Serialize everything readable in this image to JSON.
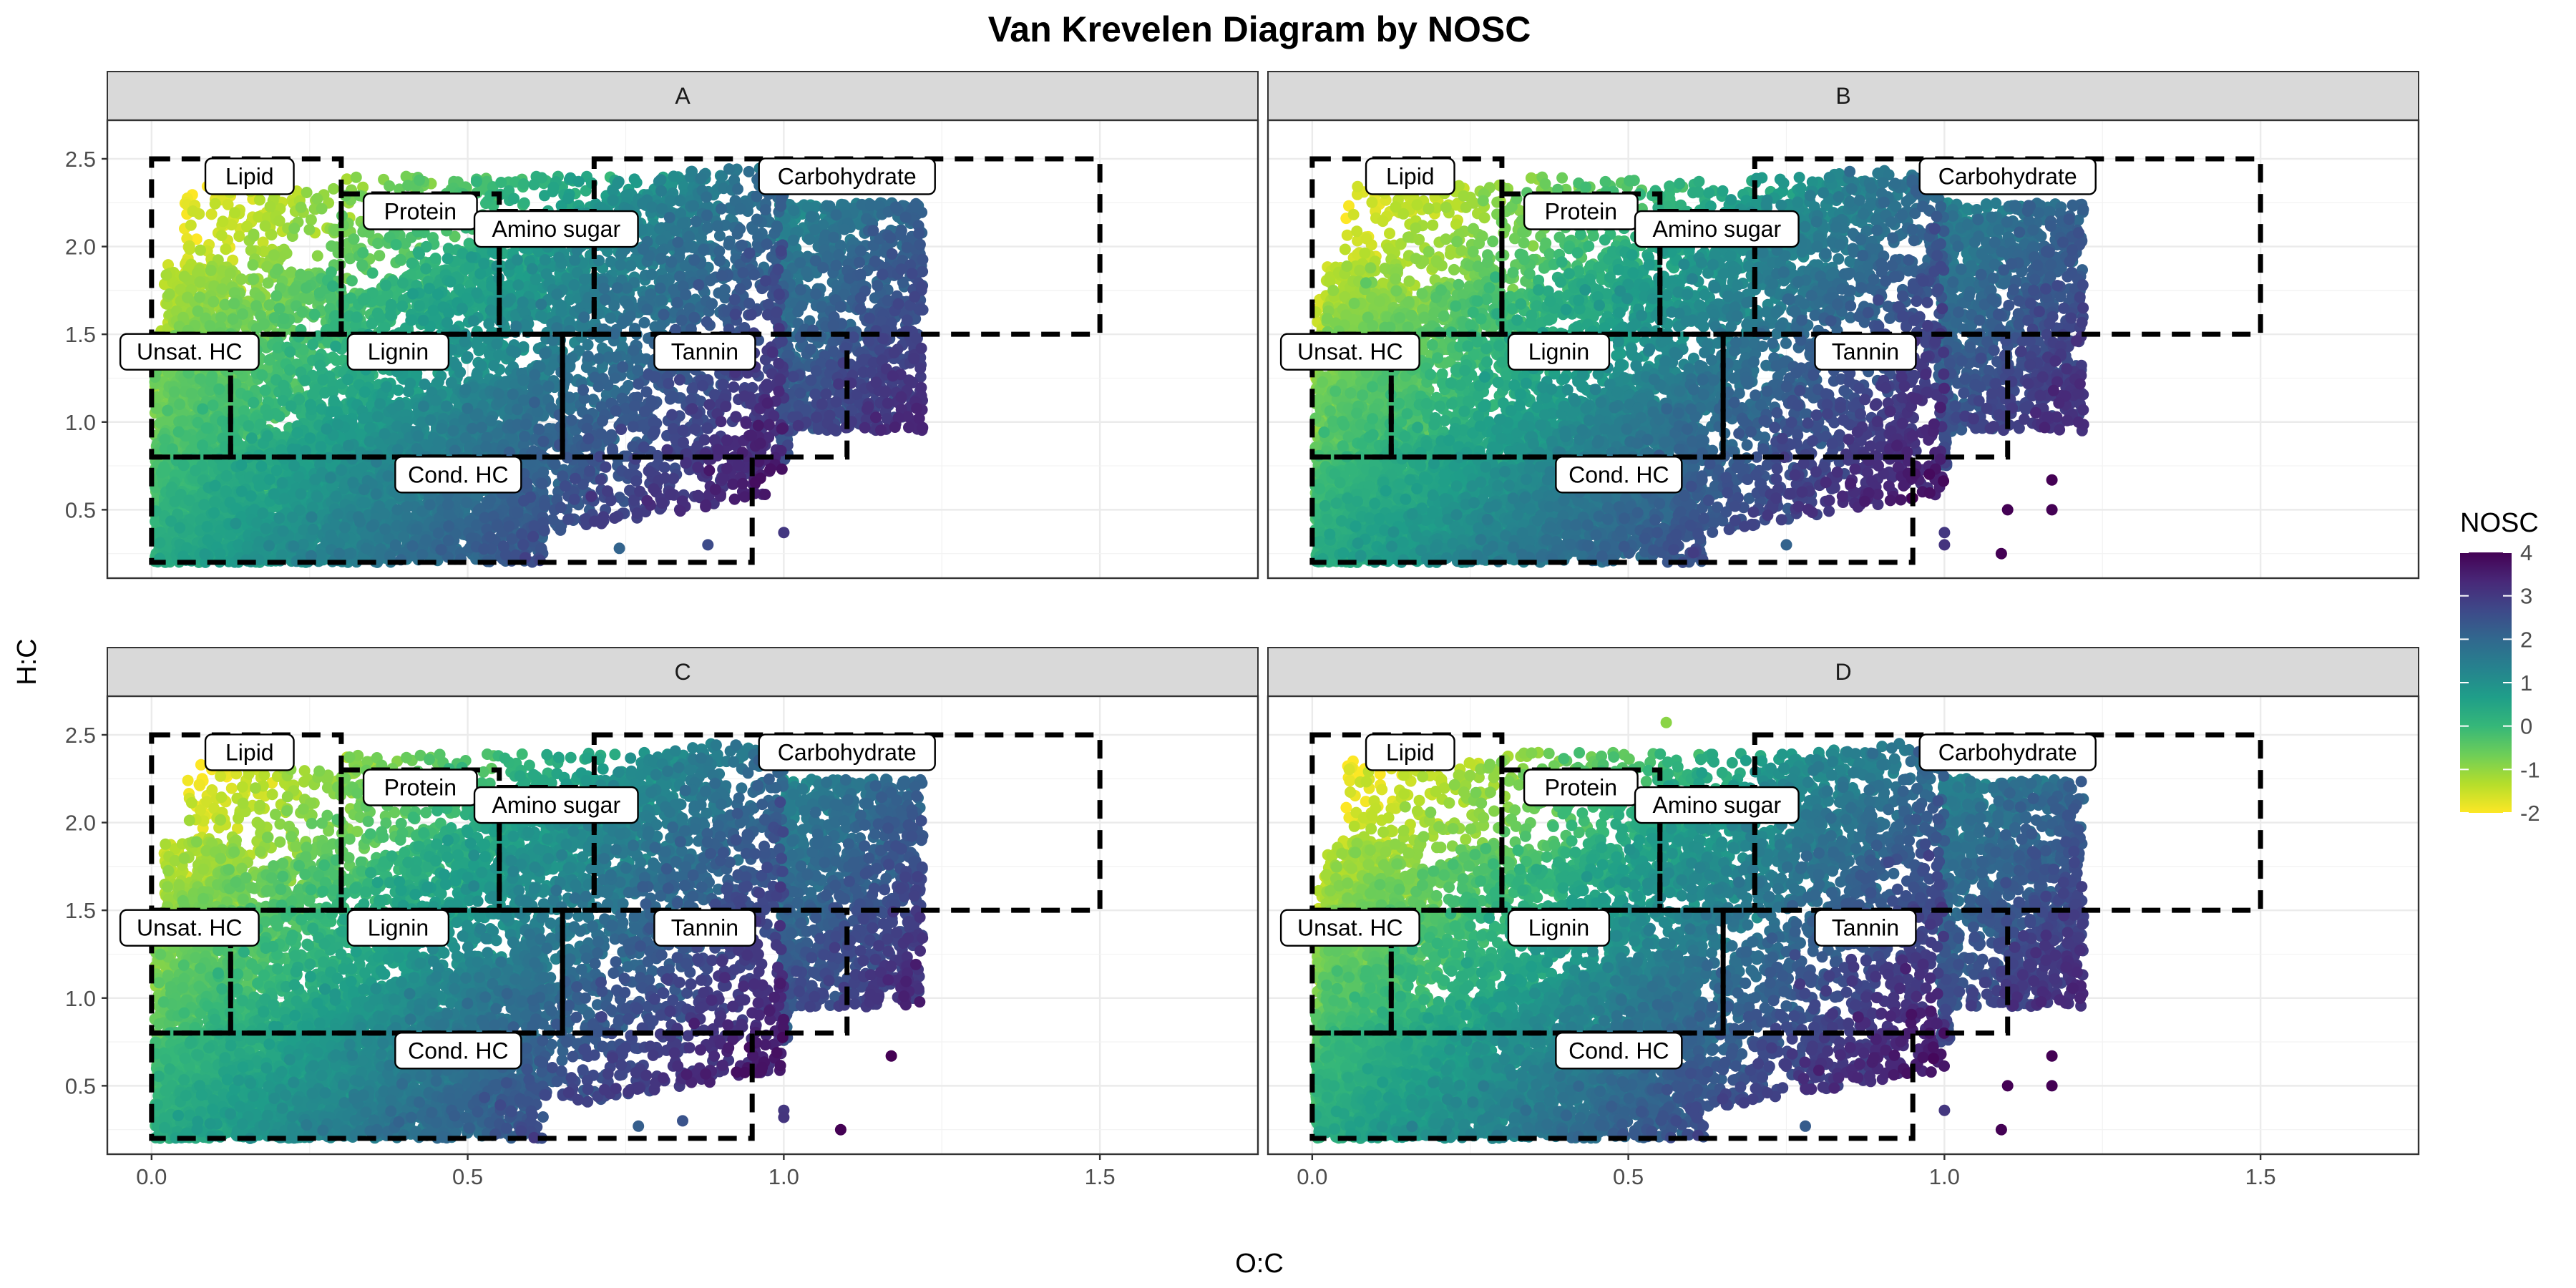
{
  "chart_data": {
    "type": "scatter",
    "title": "Van Krevelen Diagram by NOSC",
    "xlabel": "O:C",
    "ylabel": "H:C",
    "xlim": [
      -0.07,
      1.75
    ],
    "ylim": [
      0.11,
      2.72
    ],
    "x_ticks": [
      0,
      0.5,
      1,
      1.5
    ],
    "x_tick_labels": [
      "0.0",
      "0.5",
      "1.0",
      "1.5"
    ],
    "y_ticks": [
      0.5,
      1,
      1.5,
      2,
      2.5
    ],
    "y_tick_labels": [
      "0.5",
      "1.0",
      "1.5",
      "2.0",
      "2.5"
    ],
    "grid": true,
    "facets": [
      "A",
      "B",
      "C",
      "D"
    ],
    "color_scale": {
      "title": "NOSC",
      "range": [
        -2,
        4
      ],
      "ticks": [
        4,
        3,
        2,
        1,
        0,
        -1,
        -2
      ],
      "tick_labels": [
        "4",
        "3",
        "2",
        "1",
        "0",
        "-1",
        "-2"
      ],
      "colors": [
        "#FDE725",
        "#B5DE2B",
        "#6ECE58",
        "#35B779",
        "#1F9E89",
        "#26828E",
        "#31688E",
        "#3E4989",
        "#482878",
        "#440154"
      ],
      "legend_position": "right"
    },
    "regions": [
      {
        "label": "Lipid",
        "oc": [
          0,
          0.3
        ],
        "hc": [
          1.5,
          2.5
        ],
        "label_pos": [
          0.155,
          2.4
        ]
      },
      {
        "label": "Protein",
        "oc": [
          0.3,
          0.55
        ],
        "hc": [
          1.5,
          2.3
        ],
        "label_pos": [
          0.425,
          2.2
        ]
      },
      {
        "label": "Amino sugar",
        "oc": [
          0.55,
          0.7
        ],
        "hc": [
          1.5,
          2.2
        ],
        "label_pos": [
          0.64,
          2.1
        ]
      },
      {
        "label": "Carbohydrate",
        "oc": [
          0.7,
          1.5
        ],
        "hc": [
          1.5,
          2.5
        ],
        "label_pos": [
          1.1,
          2.4
        ]
      },
      {
        "label": "Unsat. HC",
        "oc": [
          0,
          0.125
        ],
        "hc": [
          0.8,
          1.5
        ],
        "label_pos": [
          0.06,
          1.4
        ]
      },
      {
        "label": "Lignin",
        "oc": [
          0.125,
          0.65
        ],
        "hc": [
          0.8,
          1.5
        ],
        "label_pos": [
          0.39,
          1.4
        ]
      },
      {
        "label": "Tannin",
        "oc": [
          0.65,
          1.1
        ],
        "hc": [
          0.8,
          1.5
        ],
        "label_pos": [
          0.875,
          1.4
        ]
      },
      {
        "label": "Cond. HC",
        "oc": [
          0,
          0.95
        ],
        "hc": [
          0.2,
          0.8
        ],
        "label_pos": [
          0.485,
          0.7
        ]
      }
    ],
    "points": {
      "density": "approximately 9000 formula assignments per panel, O:C 0.0-1.22, H:C 0.2-2.55",
      "outliers": {
        "A": [
          [
            1.0,
            0.37
          ],
          [
            0.74,
            0.28
          ],
          [
            0.88,
            0.3
          ],
          [
            0.52,
            0.3
          ]
        ],
        "B": [
          [
            1.0,
            0.37
          ],
          [
            1.09,
            0.25
          ],
          [
            1.17,
            0.67
          ],
          [
            1.17,
            0.5
          ],
          [
            1.1,
            0.5
          ],
          [
            1.0,
            0.3
          ],
          [
            0.75,
            0.3
          ]
        ],
        "C": [
          [
            1.09,
            0.25
          ],
          [
            1.17,
            0.67
          ],
          [
            1.0,
            0.36
          ],
          [
            1.0,
            0.32
          ],
          [
            0.77,
            0.27
          ],
          [
            0.84,
            0.3
          ]
        ],
        "D": [
          [
            1.09,
            0.25
          ],
          [
            1.17,
            0.67
          ],
          [
            1.17,
            0.5
          ],
          [
            1.1,
            0.5
          ],
          [
            1.0,
            0.36
          ],
          [
            0.78,
            0.27
          ],
          [
            0.56,
            2.57
          ]
        ]
      }
    }
  }
}
